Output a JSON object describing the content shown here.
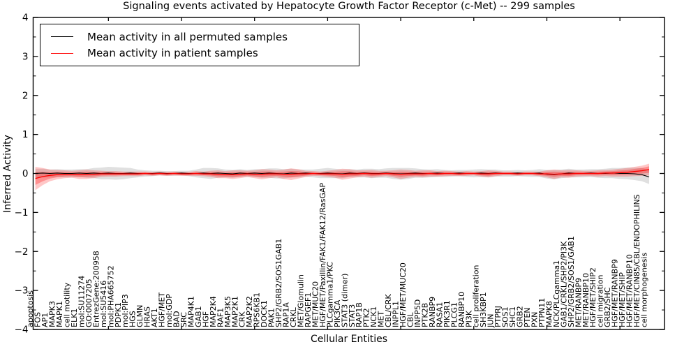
{
  "chart_data": {
    "type": "line",
    "title": "Signaling events activated by Hepatocyte Growth Factor Receptor (c-Met) -- 299 samples",
    "xlabel": "Cellular Entities",
    "ylabel": "Inferred Activity",
    "ylim": [
      -4,
      4
    ],
    "ytick_major_step": 1,
    "ytick_minor_step": 0.5,
    "xtick_every": 10,
    "grid": false,
    "legend_position": "upper left",
    "colors": {
      "permuted_line": "#000000",
      "patient_line": "#ff0000",
      "permuted_band": "#bbbbbb",
      "patient_band": "#ff0000",
      "axis": "#000000"
    },
    "legend": [
      {
        "label": "Mean activity in all permuted samples",
        "color": "#000000"
      },
      {
        "label": "Mean activity in patient samples",
        "color": "#ff0000"
      }
    ],
    "categories": [
      "apoptosis",
      "FOS",
      "AP1",
      "MAPK3",
      "MAPK1",
      "cell motility",
      "ELK1",
      "mol:SU11274",
      "GO:0007205",
      "EntrezGene:200958",
      "mol:SU5416",
      "mol:PHA665752",
      "PDPK1",
      "mol:PIP3",
      "HGS",
      "GLMN",
      "HRAS",
      "AKT1",
      "HGF/MET",
      "mol:GDP",
      "BAD",
      "SRC",
      "MAP4K1",
      "GAB1",
      "HGF",
      "MAP2K4",
      "RAF1",
      "MAP3K5",
      "MAP2K1",
      "CRK",
      "MAP2K2",
      "RPS6KB1",
      "DOCK1",
      "PAK1",
      "SHP2/GRB2/SOS1GAB1",
      "RAP1A",
      "CRKL",
      "MET/Glomulin",
      "RAPGEF1",
      "MET/MUC20",
      "HGF/MET/Paxillin/FAK1/FAK12/RasGAP",
      "PLCgamma1/PKC",
      "PIK3CA",
      "STAT3 (dimer)",
      "STAT3",
      "RAP1B",
      "PTK2",
      "NCK1",
      "MET",
      "CBL/CRK",
      "INPPL1",
      "HGF/MET/MUC20",
      "CBL",
      "INPP5D",
      "PTK2B",
      "RANBP9",
      "RASA1",
      "PIK3R1",
      "PLCG1",
      "RANBP10",
      "PI3K",
      "cell proliferation",
      "SH3KBP1",
      "JUN",
      "PTPRJ",
      "SOS1",
      "SHC1",
      "GRB2",
      "PTEN",
      "PXN",
      "PTPN11",
      "MAPK8",
      "NCK/PLCgamma1",
      "GAB1/CRKL/SHP2/PI3K",
      "SHP2/GRB2/SOS1/GAB1",
      "MET/RANBP9",
      "MET/RANBP10",
      "HGF/MET/SHIP2",
      "cell migration",
      "GRB2/SHC",
      "HGF/MET/RANBP9",
      "HGF/MET/SHIP",
      "HGF/MET/RANBP10",
      "HGF/MET/CIN85/CBL/ENDOPHILINS",
      "cell morphogenesis"
    ],
    "series": [
      {
        "name": "Mean activity in all permuted samples",
        "color": "#000000",
        "values": [
          0.0,
          0.01,
          0.0,
          0.01,
          0.0,
          0.0,
          0.01,
          0.0,
          0.01,
          0.0,
          0.01,
          0.0,
          0.0,
          0.01,
          0.0,
          0.0,
          0.0,
          0.01,
          0.0,
          0.0,
          0.01,
          0.0,
          0.0,
          0.01,
          0.0,
          0.01,
          0.0,
          -0.01,
          0.01,
          0.0,
          0.01,
          0.0,
          0.01,
          0.0,
          -0.01,
          0.01,
          0.0,
          0.01,
          0.0,
          0.0,
          0.01,
          0.0,
          -0.01,
          0.01,
          0.0,
          0.01,
          0.0,
          0.0,
          0.01,
          0.0,
          -0.01,
          0.0,
          0.01,
          0.0,
          0.0,
          0.01,
          0.0,
          0.0,
          0.01,
          0.0,
          0.0,
          0.01,
          0.0,
          0.01,
          0.0,
          0.0,
          0.01,
          0.0,
          0.0,
          0.01,
          -0.02,
          -0.03,
          -0.01,
          0.01,
          0.0,
          0.0,
          0.01,
          0.0,
          0.0,
          0.01,
          0.0,
          0.0,
          -0.01,
          -0.03,
          -0.09
        ],
        "band_halfwidth": [
          0.12,
          0.11,
          0.1,
          0.1,
          0.1,
          0.1,
          0.1,
          0.11,
          0.13,
          0.15,
          0.16,
          0.16,
          0.15,
          0.13,
          0.1,
          0.08,
          0.07,
          0.06,
          0.06,
          0.06,
          0.06,
          0.07,
          0.1,
          0.13,
          0.14,
          0.12,
          0.1,
          0.1,
          0.1,
          0.09,
          0.1,
          0.11,
          0.12,
          0.13,
          0.12,
          0.11,
          0.1,
          0.09,
          0.1,
          0.12,
          0.13,
          0.12,
          0.11,
          0.1,
          0.1,
          0.11,
          0.12,
          0.11,
          0.12,
          0.14,
          0.15,
          0.14,
          0.12,
          0.11,
          0.1,
          0.1,
          0.09,
          0.08,
          0.08,
          0.09,
          0.1,
          0.1,
          0.1,
          0.09,
          0.08,
          0.08,
          0.08,
          0.08,
          0.09,
          0.1,
          0.11,
          0.12,
          0.11,
          0.11,
          0.1,
          0.1,
          0.1,
          0.11,
          0.12,
          0.13,
          0.14,
          0.15,
          0.16,
          0.17,
          0.18
        ]
      },
      {
        "name": "Mean activity in patient samples",
        "color": "#ff0000",
        "values": [
          -0.13,
          -0.08,
          -0.05,
          -0.03,
          -0.02,
          -0.02,
          -0.03,
          -0.02,
          -0.02,
          -0.01,
          -0.01,
          -0.01,
          -0.01,
          -0.01,
          -0.01,
          0.0,
          -0.01,
          0.0,
          -0.01,
          0.0,
          -0.01,
          -0.01,
          0.0,
          -0.01,
          -0.01,
          -0.02,
          -0.03,
          -0.03,
          -0.02,
          -0.01,
          -0.02,
          -0.02,
          -0.01,
          -0.01,
          -0.02,
          -0.02,
          -0.01,
          -0.01,
          0.0,
          -0.01,
          -0.01,
          -0.01,
          -0.02,
          -0.01,
          -0.01,
          0.0,
          -0.01,
          -0.01,
          0.0,
          -0.01,
          -0.02,
          -0.01,
          -0.01,
          -0.01,
          0.0,
          -0.01,
          0.0,
          0.0,
          -0.01,
          0.0,
          0.0,
          -0.01,
          -0.01,
          0.0,
          0.0,
          0.0,
          -0.01,
          0.0,
          0.0,
          -0.01,
          -0.01,
          -0.02,
          -0.01,
          -0.01,
          0.0,
          0.0,
          0.0,
          0.0,
          0.01,
          0.01,
          0.02,
          0.03,
          0.05,
          0.07,
          0.1
        ],
        "band_halfwidth": [
          0.3,
          0.22,
          0.15,
          0.12,
          0.1,
          0.09,
          0.11,
          0.12,
          0.1,
          0.08,
          0.07,
          0.07,
          0.06,
          0.06,
          0.06,
          0.05,
          0.05,
          0.05,
          0.05,
          0.05,
          0.05,
          0.05,
          0.06,
          0.06,
          0.08,
          0.1,
          0.09,
          0.11,
          0.1,
          0.08,
          0.1,
          0.13,
          0.11,
          0.09,
          0.12,
          0.15,
          0.12,
          0.08,
          0.06,
          0.06,
          0.08,
          0.1,
          0.14,
          0.12,
          0.09,
          0.08,
          0.1,
          0.08,
          0.07,
          0.09,
          0.12,
          0.1,
          0.08,
          0.09,
          0.08,
          0.07,
          0.07,
          0.06,
          0.06,
          0.06,
          0.05,
          0.07,
          0.09,
          0.07,
          0.05,
          0.05,
          0.05,
          0.05,
          0.05,
          0.06,
          0.09,
          0.12,
          0.09,
          0.1,
          0.08,
          0.07,
          0.07,
          0.08,
          0.08,
          0.09,
          0.1,
          0.11,
          0.12,
          0.13,
          0.15
        ]
      }
    ]
  }
}
